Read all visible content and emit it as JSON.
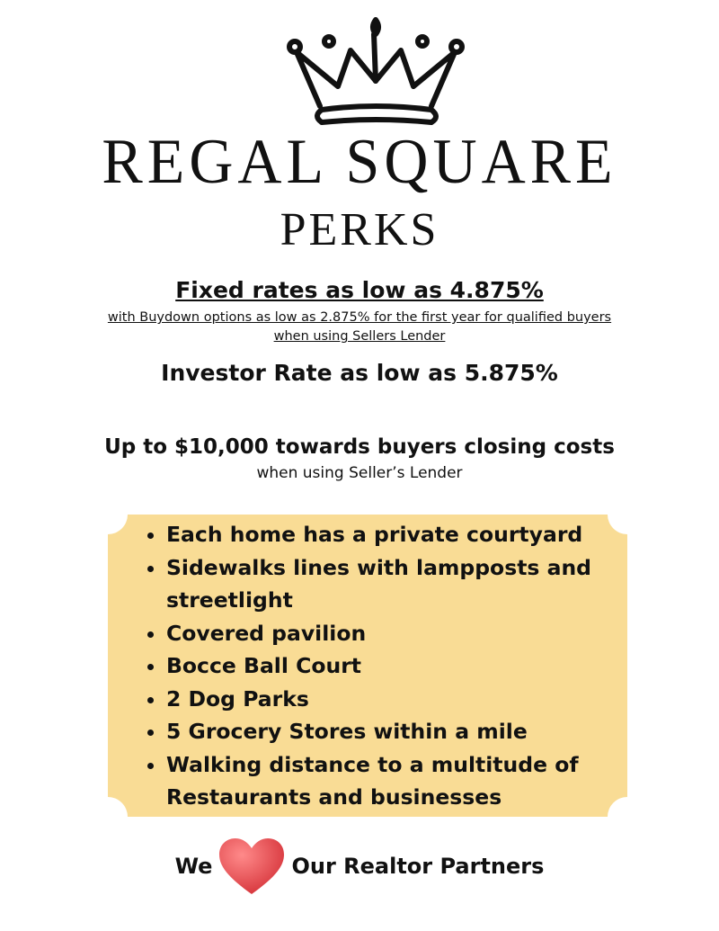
{
  "header": {
    "logo_icon": "crown-icon",
    "title": "REGAL SQUARE",
    "subtitle": "PERKS"
  },
  "rates": {
    "fixed": "Fixed rates as low as 4.875%",
    "buydown_line1": "with Buydown options as low as 2.875% for the first year for qualified buyers",
    "buydown_line2": "when using Sellers Lender",
    "investor": "Investor Rate as low as 5.875%"
  },
  "closing": {
    "headline": "Up to $10,000 towards buyers closing costs",
    "sub": "when using Seller’s Lender"
  },
  "perks": {
    "box_color": "#f9dc95",
    "items": [
      "Each home has a private courtyard",
      "Sidewalks lines with lampposts and streetlight",
      "Covered pavilion",
      "Bocce Ball Court",
      "2 Dog Parks",
      "5 Grocery Stores within a mile",
      "Walking distance to a multitude of Restaurants and businesses"
    ]
  },
  "footer": {
    "we": "We",
    "heart_icon": "heart-icon",
    "rest": "Our Realtor Partners",
    "heart_color": "#e8474c"
  }
}
